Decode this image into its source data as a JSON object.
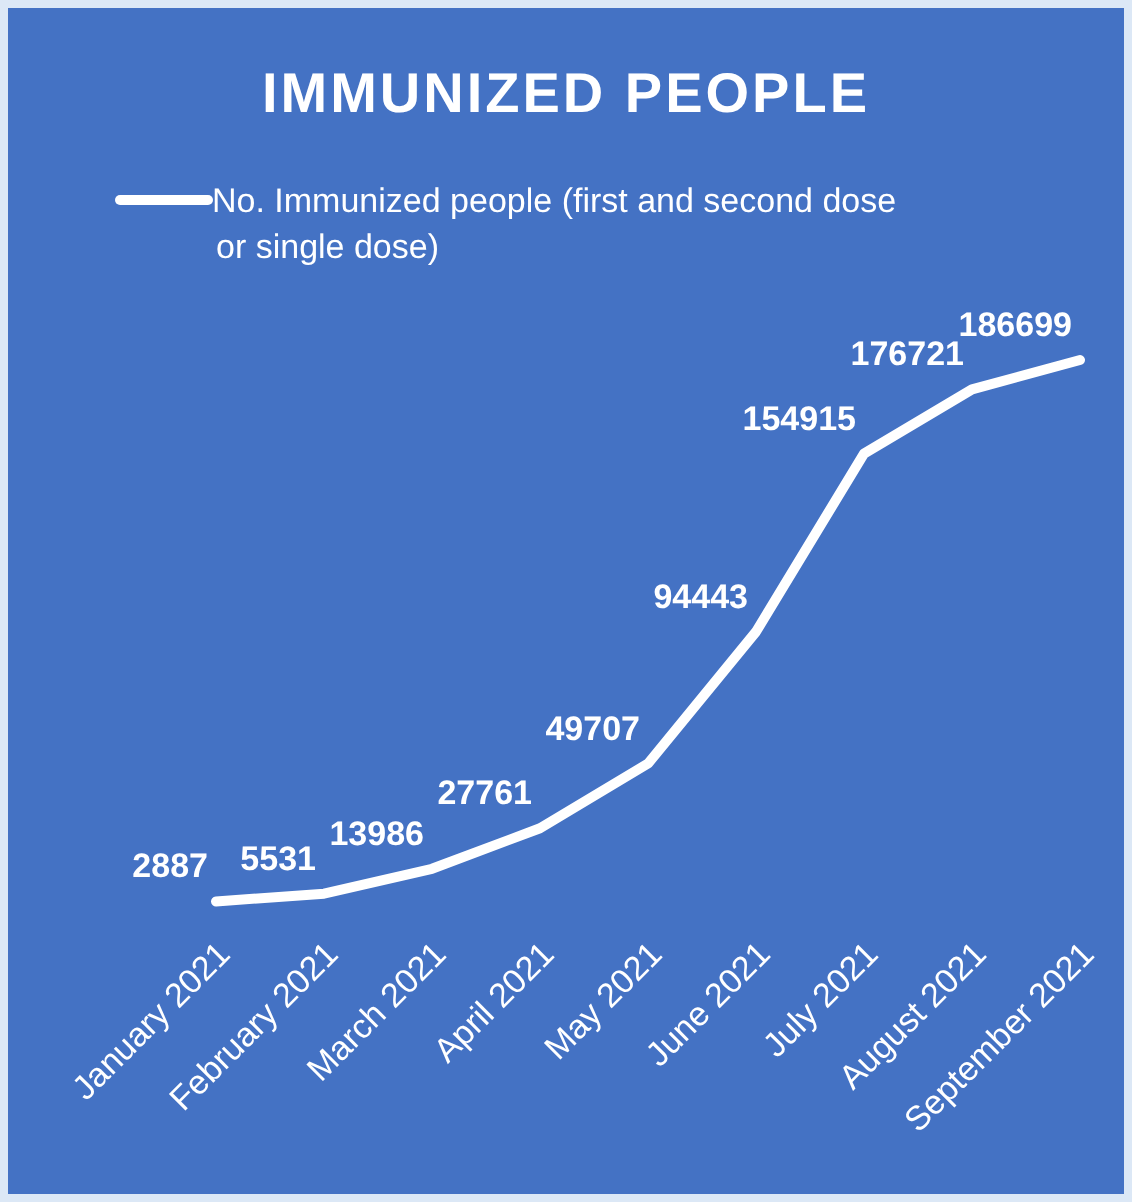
{
  "chart_data": {
    "type": "line",
    "title": "IMMUNIZED PEOPLE",
    "categories": [
      "January 2021",
      "February 2021",
      "March 2021",
      "April 2021",
      "May 2021",
      "June 2021",
      "July 2021",
      "August 2021",
      "September 2021"
    ],
    "series": [
      {
        "name": "No. Immunized people (first and second dose or single dose)",
        "color": "#ffffff",
        "values": [
          2887,
          5531,
          13986,
          27761,
          49707,
          94443,
          154915,
          176721,
          186699
        ]
      }
    ],
    "data_labels": true,
    "legend": "top left",
    "marker": "none"
  }
}
